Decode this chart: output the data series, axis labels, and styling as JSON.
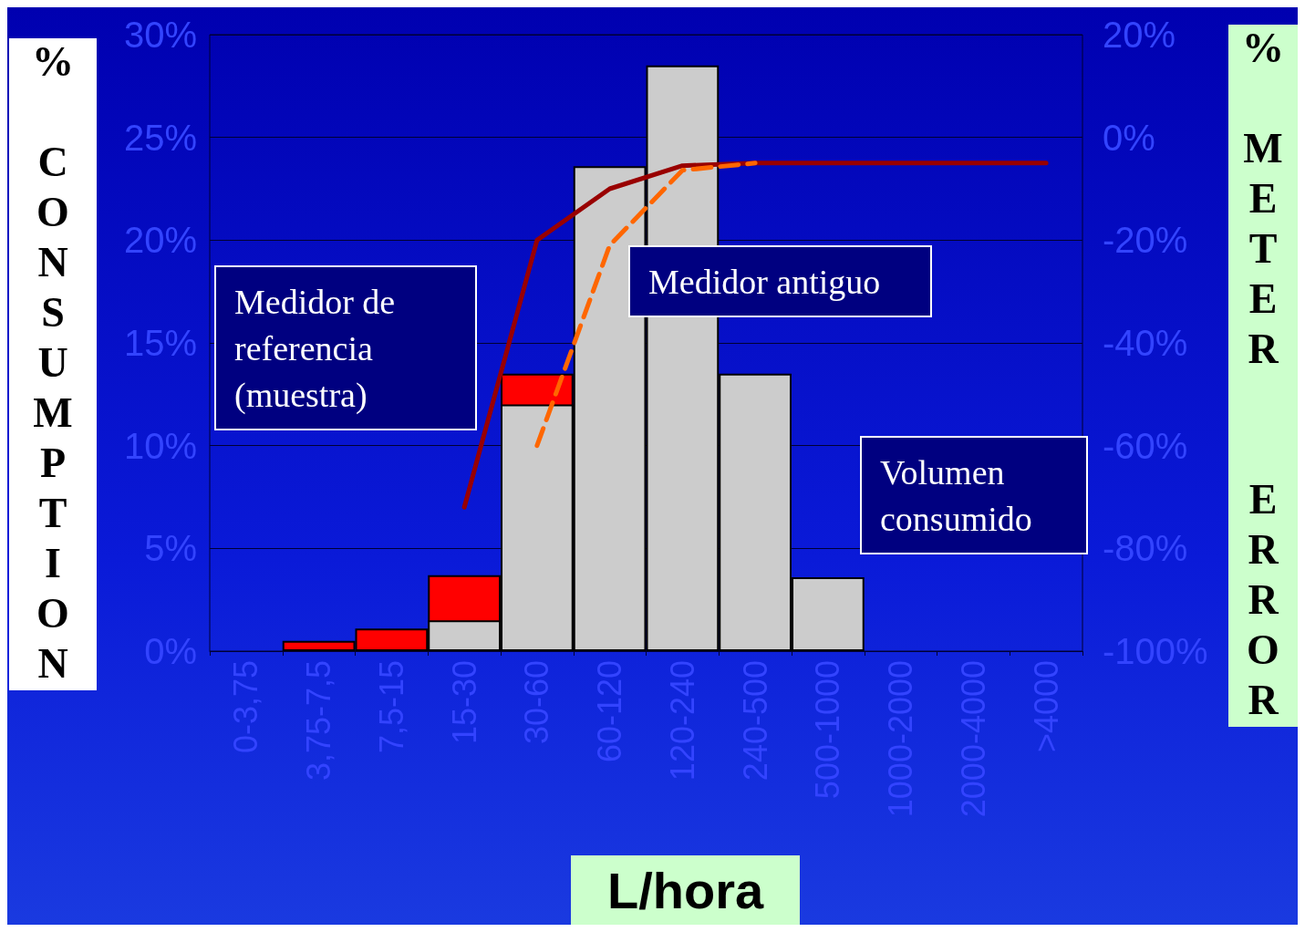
{
  "chart_data": {
    "type": "bar",
    "categories": [
      "0-3,75",
      "3,75-7,5",
      "7,5-15",
      "15-30",
      "30-60",
      "60-120",
      "120-240",
      "240-500",
      "500-1000",
      "1000-2000",
      "2000-4000",
      ">4000"
    ],
    "xlabel": "L/hora",
    "ylabel": "% CONSUMPTION",
    "y2label": "% METER  ERROR",
    "ylim": [
      0,
      30
    ],
    "yticks": [
      {
        "value": 0,
        "label": "0%"
      },
      {
        "value": 5,
        "label": "5%"
      },
      {
        "value": 10,
        "label": "10%"
      },
      {
        "value": 15,
        "label": "15%"
      },
      {
        "value": 20,
        "label": "20%"
      },
      {
        "value": 25,
        "label": "25%"
      },
      {
        "value": 30,
        "label": "30%"
      }
    ],
    "y2lim": [
      -100,
      20
    ],
    "y2ticks": [
      {
        "value": -100,
        "label": "-100%"
      },
      {
        "value": -80,
        "label": "-80%"
      },
      {
        "value": -60,
        "label": "-60%"
      },
      {
        "value": -40,
        "label": "-40%"
      },
      {
        "value": -20,
        "label": "-20%"
      },
      {
        "value": 0,
        "label": "0%"
      },
      {
        "value": 20,
        "label": "20%"
      }
    ],
    "grid": "y",
    "marker": "none",
    "annotations": [
      "Medidor de referencia (muestra)",
      "Medidor antiguo",
      "Volumen consumido"
    ],
    "series": [
      {
        "color": "#ff0000",
        "values": [
          null,
          0.5,
          1.1,
          3.7,
          13.5,
          null,
          null,
          null,
          null,
          null,
          null,
          null
        ]
      },
      {
        "color": "#cccccc",
        "values": [
          null,
          null,
          null,
          1.5,
          12,
          23.6,
          28.5,
          13.5,
          3.6,
          null,
          null,
          null
        ]
      },
      {
        "type": "line",
        "axis": "y2",
        "color": "#990000",
        "line_style": "solid",
        "values": [
          null,
          null,
          null,
          -72,
          -20,
          -10,
          -5.5,
          -5,
          -5,
          -5,
          -5,
          -5
        ]
      },
      {
        "type": "line",
        "axis": "y2",
        "color": "#ff6600",
        "line_style": "dashed",
        "values": [
          null,
          null,
          null,
          null,
          -60,
          -21,
          -6.4,
          -5,
          null,
          null,
          null,
          null
        ]
      }
    ]
  }
}
